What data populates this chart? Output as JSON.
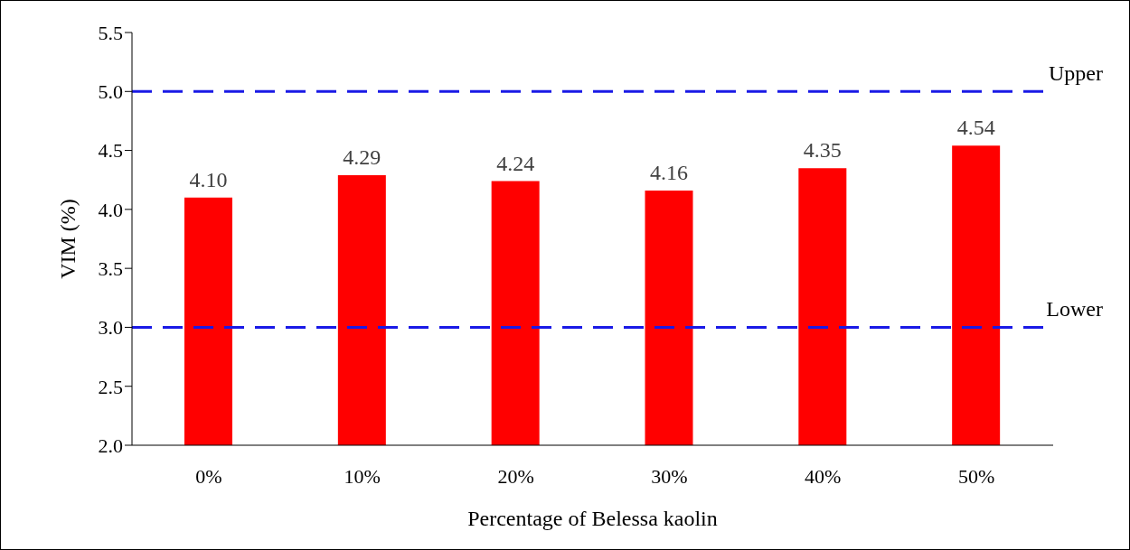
{
  "chart_data": {
    "type": "bar",
    "xlabel": "Percentage of Belessa kaolin",
    "ylabel": "VIM (%)",
    "categories": [
      "0%",
      "10%",
      "20%",
      "30%",
      "40%",
      "50%"
    ],
    "values": [
      4.1,
      4.29,
      4.24,
      4.16,
      4.35,
      4.54
    ],
    "value_labels": [
      "4.10",
      "4.29",
      "4.24",
      "4.16",
      "4.35",
      "4.54"
    ],
    "color": "#ff0000",
    "ylim": [
      2.0,
      5.5
    ],
    "yticks": [
      {
        "value": 2,
        "label": "2.0"
      },
      {
        "value": 2.5,
        "label": "2.5"
      },
      {
        "value": 3,
        "label": "3.0"
      },
      {
        "value": 3.5,
        "label": "3.5"
      },
      {
        "value": 4,
        "label": "4.0"
      },
      {
        "value": 4.5,
        "label": "4.5"
      },
      {
        "value": 5,
        "label": "5.0"
      },
      {
        "value": 5.5,
        "label": "5.5"
      }
    ],
    "grid": false,
    "legend": false,
    "ref_lines": [
      {
        "axis": "y",
        "value": 5.0,
        "label": "Upper",
        "color": "#1a1ae6",
        "line_style": "dashed"
      },
      {
        "axis": "y",
        "value": 3.0,
        "label": "Lower",
        "color": "#1a1ae6",
        "line_style": "dashed"
      }
    ]
  }
}
